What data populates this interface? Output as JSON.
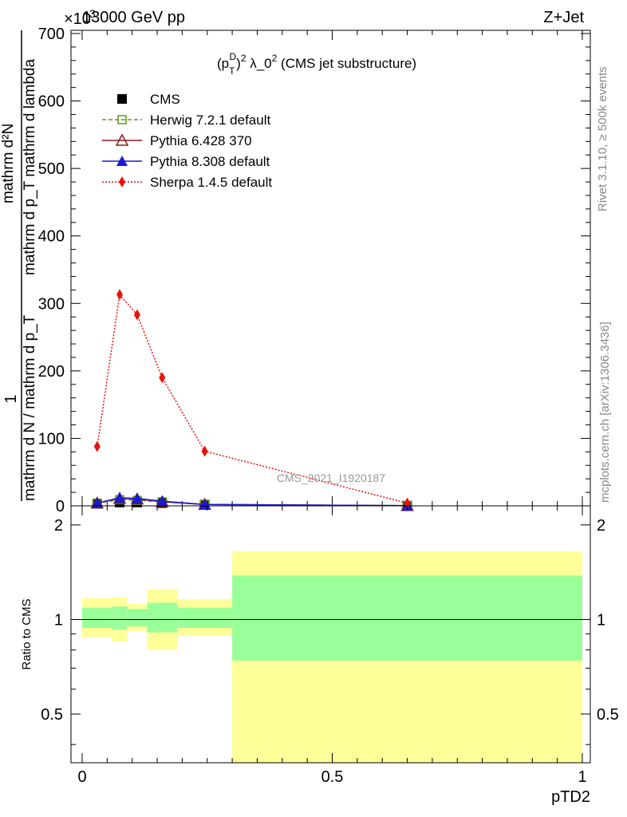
{
  "header": {
    "left_label": "13000 GeV pp",
    "right_label": "Z+Jet",
    "exponent_label": "×10",
    "exponent_power": "3"
  },
  "side_labels": {
    "rivet": "Rivet 3.1.10, ≥ 500k events",
    "mcplots": "mcplots.cern.ch [arXiv:1306.3436]"
  },
  "chart_data": [
    {
      "type": "line",
      "title": "(p_T^D)^2 λ_0^2 (CMS jet substructure)",
      "title_main_prefix": "(p",
      "title_sub": "T",
      "title_sup": "D",
      "title_sq1": "2",
      "title_mid": " λ_0",
      "title_sq2": "2",
      "title_tail": " (CMS jet substructure)",
      "watermark": "CMS_2021_I1920187",
      "ylabel_numerator_one": "1",
      "ylabel_denominator": "mathrm d N / mathrm d p_T",
      "ylabel_numerator_rest": "mathrm d²N",
      "ylabel_denominator_rest": "mathrm d p_T mathrm d lambda",
      "ylabel_lines": [
        "mathrm d N / mathrm d p",
        "T",
        "mathrm d p",
        "T",
        "mathrm d lambda",
        "mathrm d",
        "2",
        "N"
      ],
      "xlim": [
        0,
        1
      ],
      "ylim": [
        0,
        700
      ],
      "y_scale_factor": 1000,
      "y_ticks": [
        "0",
        "100",
        "200",
        "300",
        "400",
        "500",
        "600",
        "700"
      ],
      "x": [
        0.03,
        0.075,
        0.11,
        0.16,
        0.245,
        0.65
      ],
      "series": [
        {
          "name": "CMS",
          "color": "#000000",
          "style": "none",
          "marker": "square-filled",
          "values": [
            3,
            5,
            5,
            4,
            2,
            0.3
          ]
        },
        {
          "name": "Herwig 7.2.1 default",
          "color": "#5a9e1a",
          "style": "dashed",
          "marker": "square-open",
          "values": [
            4,
            9,
            8,
            6,
            2,
            0.3
          ]
        },
        {
          "name": "Pythia 6.428 370",
          "color": "#8b1a1a",
          "style": "solid",
          "marker": "triangle-open",
          "values": [
            4,
            11,
            10,
            6,
            2,
            0.3
          ]
        },
        {
          "name": "Pythia 8.308 default",
          "color": "#1a1ad6",
          "style": "solid",
          "marker": "triangle-filled",
          "values": [
            4,
            12,
            11,
            7,
            2,
            0.3
          ]
        },
        {
          "name": "Sherpa 1.4.5 default",
          "color": "#e8120c",
          "style": "dotted",
          "marker": "diamond-filled",
          "values": [
            88,
            313,
            283,
            190,
            81,
            4
          ]
        }
      ]
    },
    {
      "type": "area",
      "ylabel": "Ratio to CMS",
      "xlabel": "pTD2",
      "xlim": [
        0,
        1
      ],
      "ylim": [
        0.35,
        2.3
      ],
      "y_ticks": [
        "0.5",
        "1",
        "2"
      ],
      "x_ticks": [
        "0",
        "0.5",
        "1"
      ],
      "reference_line": 1,
      "bins": [
        {
          "lo": 0.0,
          "hi": 0.06,
          "inner": [
            0.94,
            1.09
          ],
          "outer": [
            0.88,
            1.17
          ]
        },
        {
          "lo": 0.06,
          "hi": 0.09,
          "inner": [
            0.93,
            1.1
          ],
          "outer": [
            0.85,
            1.18
          ]
        },
        {
          "lo": 0.09,
          "hi": 0.13,
          "inner": [
            0.95,
            1.08
          ],
          "outer": [
            0.92,
            1.12
          ]
        },
        {
          "lo": 0.13,
          "hi": 0.19,
          "inner": [
            0.91,
            1.13
          ],
          "outer": [
            0.8,
            1.25
          ]
        },
        {
          "lo": 0.19,
          "hi": 0.3,
          "inner": [
            0.94,
            1.09
          ],
          "outer": [
            0.89,
            1.16
          ]
        },
        {
          "lo": 0.3,
          "hi": 1.0,
          "inner": [
            0.74,
            1.38
          ],
          "outer": [
            0.35,
            1.65
          ]
        }
      ],
      "colors": {
        "inner": "#99ff99",
        "outer": "#ffff99"
      }
    }
  ]
}
